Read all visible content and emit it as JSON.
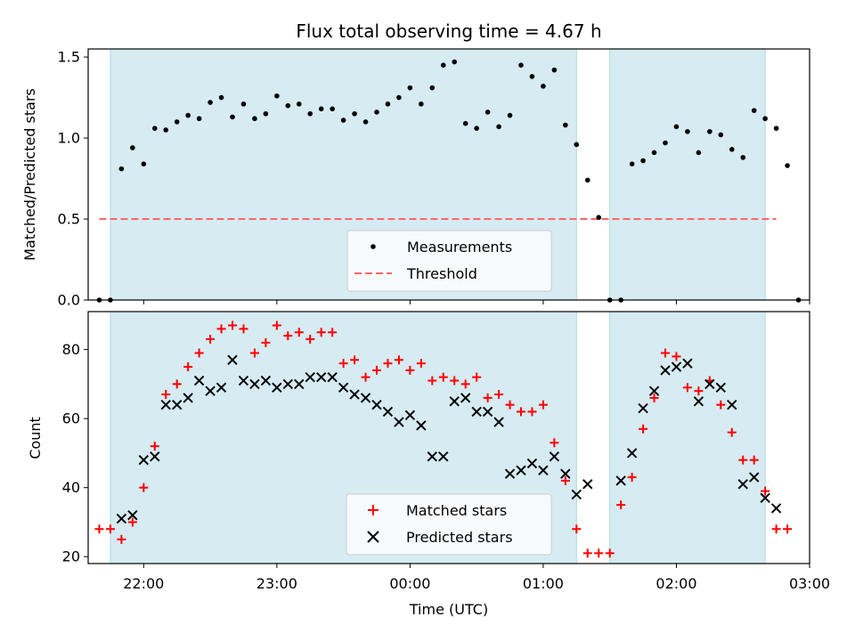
{
  "chart_data": [
    {
      "type": "scatter",
      "title": "Flux total observing time = 4.67 h",
      "xlabel": "",
      "ylabel": "Matched/Predicted stars",
      "ylim": [
        0,
        1.55
      ],
      "yticks": [
        "0.0",
        "0.5",
        "1.0",
        "1.5"
      ],
      "xlim": [
        "21:35",
        "03:00"
      ],
      "grid": false,
      "legend_position": "lower-center",
      "shaded_intervals": [
        [
          "21:45",
          "01:15"
        ],
        [
          "01:30",
          "02:40"
        ]
      ],
      "shade_color": "#add8e6",
      "threshold": {
        "name": "Threshold",
        "y": 0.5,
        "x_range": [
          "21:40",
          "02:45"
        ],
        "color": "#ff6666",
        "style": "dashed"
      },
      "series": [
        {
          "name": "Measurements",
          "marker": "dot",
          "color": "#000000",
          "points": [
            [
              "21:40",
              0.0
            ],
            [
              "21:45",
              0.0
            ],
            [
              "21:50",
              0.81
            ],
            [
              "21:55",
              0.94
            ],
            [
              "22:00",
              0.84
            ],
            [
              "22:05",
              1.06
            ],
            [
              "22:10",
              1.05
            ],
            [
              "22:15",
              1.1
            ],
            [
              "22:20",
              1.14
            ],
            [
              "22:25",
              1.12
            ],
            [
              "22:30",
              1.22
            ],
            [
              "22:35",
              1.25
            ],
            [
              "22:40",
              1.13
            ],
            [
              "22:45",
              1.21
            ],
            [
              "22:50",
              1.12
            ],
            [
              "22:55",
              1.15
            ],
            [
              "23:00",
              1.26
            ],
            [
              "23:05",
              1.2
            ],
            [
              "23:10",
              1.21
            ],
            [
              "23:15",
              1.15
            ],
            [
              "23:20",
              1.18
            ],
            [
              "23:25",
              1.18
            ],
            [
              "23:30",
              1.11
            ],
            [
              "23:35",
              1.15
            ],
            [
              "23:40",
              1.1
            ],
            [
              "23:45",
              1.16
            ],
            [
              "23:50",
              1.21
            ],
            [
              "23:55",
              1.25
            ],
            [
              "00:00",
              1.31
            ],
            [
              "00:05",
              1.21
            ],
            [
              "00:10",
              1.31
            ],
            [
              "00:15",
              1.45
            ],
            [
              "00:20",
              1.47
            ],
            [
              "00:25",
              1.09
            ],
            [
              "00:30",
              1.06
            ],
            [
              "00:35",
              1.16
            ],
            [
              "00:40",
              1.07
            ],
            [
              "00:45",
              1.14
            ],
            [
              "00:50",
              1.45
            ],
            [
              "00:55",
              1.38
            ],
            [
              "01:00",
              1.32
            ],
            [
              "01:05",
              1.42
            ],
            [
              "01:10",
              1.08
            ],
            [
              "01:15",
              0.96
            ],
            [
              "01:20",
              0.74
            ],
            [
              "01:25",
              0.51
            ],
            [
              "01:30",
              0.0
            ],
            [
              "01:35",
              0.0
            ],
            [
              "01:40",
              0.84
            ],
            [
              "01:45",
              0.86
            ],
            [
              "01:50",
              0.91
            ],
            [
              "01:55",
              0.97
            ],
            [
              "02:00",
              1.07
            ],
            [
              "02:05",
              1.04
            ],
            [
              "02:10",
              0.91
            ],
            [
              "02:15",
              1.04
            ],
            [
              "02:20",
              1.02
            ],
            [
              "02:25",
              0.93
            ],
            [
              "02:30",
              0.88
            ],
            [
              "02:35",
              1.17
            ],
            [
              "02:40",
              1.12
            ],
            [
              "02:45",
              1.06
            ],
            [
              "02:50",
              0.83
            ],
            [
              "02:55",
              0.0
            ]
          ]
        }
      ]
    },
    {
      "type": "scatter",
      "title": "",
      "xlabel": "Time (UTC)",
      "ylabel": "Count",
      "ylim": [
        18,
        91
      ],
      "yticks": [
        "20",
        "40",
        "60",
        "80"
      ],
      "xlim": [
        "21:35",
        "03:00"
      ],
      "xticks": [
        "22:00",
        "23:00",
        "00:00",
        "01:00",
        "02:00",
        "03:00"
      ],
      "grid": false,
      "legend_position": "lower-center",
      "shaded_intervals": [
        [
          "21:45",
          "01:15"
        ],
        [
          "01:30",
          "02:40"
        ]
      ],
      "shade_color": "#add8e6",
      "series": [
        {
          "name": "Matched stars",
          "marker": "plus",
          "color": "#ff0000",
          "points": [
            [
              "21:40",
              28
            ],
            [
              "21:45",
              28
            ],
            [
              "21:50",
              25
            ],
            [
              "21:55",
              30
            ],
            [
              "22:00",
              40
            ],
            [
              "22:05",
              52
            ],
            [
              "22:10",
              67
            ],
            [
              "22:15",
              70
            ],
            [
              "22:20",
              75
            ],
            [
              "22:25",
              79
            ],
            [
              "22:30",
              83
            ],
            [
              "22:35",
              86
            ],
            [
              "22:40",
              87
            ],
            [
              "22:45",
              86
            ],
            [
              "22:50",
              79
            ],
            [
              "22:55",
              82
            ],
            [
              "23:00",
              87
            ],
            [
              "23:05",
              84
            ],
            [
              "23:10",
              85
            ],
            [
              "23:15",
              83
            ],
            [
              "23:20",
              85
            ],
            [
              "23:25",
              85
            ],
            [
              "23:30",
              76
            ],
            [
              "23:35",
              77
            ],
            [
              "23:40",
              72
            ],
            [
              "23:45",
              74
            ],
            [
              "23:50",
              76
            ],
            [
              "23:55",
              77
            ],
            [
              "00:00",
              74
            ],
            [
              "00:05",
              76
            ],
            [
              "00:10",
              71
            ],
            [
              "00:15",
              72
            ],
            [
              "00:20",
              71
            ],
            [
              "00:25",
              70
            ],
            [
              "00:30",
              72
            ],
            [
              "00:35",
              66
            ],
            [
              "00:40",
              67
            ],
            [
              "00:45",
              64
            ],
            [
              "00:50",
              62
            ],
            [
              "00:55",
              62
            ],
            [
              "01:00",
              64
            ],
            [
              "01:05",
              53
            ],
            [
              "01:10",
              42
            ],
            [
              "01:15",
              28
            ],
            [
              "01:20",
              21
            ],
            [
              "01:25",
              21
            ],
            [
              "01:30",
              21
            ],
            [
              "01:35",
              35
            ],
            [
              "01:40",
              43
            ],
            [
              "01:45",
              57
            ],
            [
              "01:50",
              66
            ],
            [
              "01:55",
              79
            ],
            [
              "02:00",
              78
            ],
            [
              "02:05",
              69
            ],
            [
              "02:10",
              68
            ],
            [
              "02:15",
              71
            ],
            [
              "02:20",
              64
            ],
            [
              "02:25",
              56
            ],
            [
              "02:30",
              48
            ],
            [
              "02:35",
              48
            ],
            [
              "02:40",
              39
            ],
            [
              "02:45",
              28
            ],
            [
              "02:50",
              28
            ]
          ]
        },
        {
          "name": "Predicted stars",
          "marker": "x",
          "color": "#000000",
          "points": [
            [
              "21:50",
              31
            ],
            [
              "21:55",
              32
            ],
            [
              "22:00",
              48
            ],
            [
              "22:05",
              49
            ],
            [
              "22:10",
              64
            ],
            [
              "22:15",
              64
            ],
            [
              "22:20",
              66
            ],
            [
              "22:25",
              71
            ],
            [
              "22:30",
              68
            ],
            [
              "22:35",
              69
            ],
            [
              "22:40",
              77
            ],
            [
              "22:45",
              71
            ],
            [
              "22:50",
              70
            ],
            [
              "22:55",
              71
            ],
            [
              "23:00",
              69
            ],
            [
              "23:05",
              70
            ],
            [
              "23:10",
              70
            ],
            [
              "23:15",
              72
            ],
            [
              "23:20",
              72
            ],
            [
              "23:25",
              72
            ],
            [
              "23:30",
              69
            ],
            [
              "23:35",
              67
            ],
            [
              "23:40",
              66
            ],
            [
              "23:45",
              64
            ],
            [
              "23:50",
              62
            ],
            [
              "23:55",
              59
            ],
            [
              "00:00",
              61
            ],
            [
              "00:05",
              58
            ],
            [
              "00:10",
              49
            ],
            [
              "00:15",
              49
            ],
            [
              "00:20",
              65
            ],
            [
              "00:25",
              66
            ],
            [
              "00:30",
              62
            ],
            [
              "00:35",
              62
            ],
            [
              "00:40",
              59
            ],
            [
              "00:45",
              44
            ],
            [
              "00:50",
              45
            ],
            [
              "00:55",
              47
            ],
            [
              "01:00",
              45
            ],
            [
              "01:05",
              49
            ],
            [
              "01:10",
              44
            ],
            [
              "01:15",
              38
            ],
            [
              "01:20",
              41
            ],
            [
              "01:35",
              42
            ],
            [
              "01:40",
              50
            ],
            [
              "01:45",
              63
            ],
            [
              "01:50",
              68
            ],
            [
              "01:55",
              74
            ],
            [
              "02:00",
              75
            ],
            [
              "02:05",
              76
            ],
            [
              "02:10",
              65
            ],
            [
              "02:15",
              70
            ],
            [
              "02:20",
              69
            ],
            [
              "02:25",
              64
            ],
            [
              "02:30",
              41
            ],
            [
              "02:35",
              43
            ],
            [
              "02:40",
              37
            ],
            [
              "02:45",
              34
            ]
          ]
        }
      ]
    }
  ]
}
